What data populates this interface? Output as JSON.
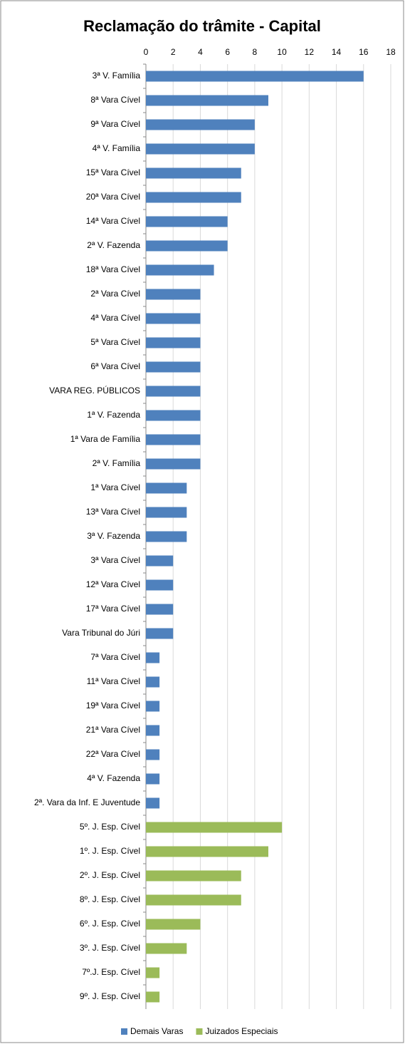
{
  "chart_data": {
    "type": "bar",
    "orientation": "horizontal",
    "title": "Reclamação do trâmite - Capital",
    "categories": [
      "3ª V. Família",
      "8ª Vara Cível",
      "9ª Vara Cível",
      "4ª V. Família",
      "15ª Vara Cível",
      "20ª Vara Cível",
      "14ª Vara Cível",
      "2ª V. Fazenda",
      "18ª Vara Cível",
      "2ª Vara Cível",
      "4ª Vara Cível",
      "5ª Vara Cível",
      "6ª Vara Cível",
      "VARA REG. PÚBLICOS",
      "1ª V. Fazenda",
      "1ª Vara de Família",
      "2ª V. Família",
      "1ª Vara Cível",
      "13ª Vara Cível",
      "3ª V. Fazenda",
      "3ª Vara Cível",
      "12ª Vara Cível",
      "17ª Vara Cível",
      "Vara Tribunal do Júri",
      "7ª Vara Cível",
      "11ª Vara Cível",
      "19ª Vara Cível",
      "21ª Vara Cível",
      "22ª Vara Cível",
      "4ª V. Fazenda",
      "2ª. Vara da Inf. E Juventude",
      "5º. J. Esp. Cível",
      "1º. J. Esp. Cível",
      "2º. J. Esp. Cível",
      "8º. J. Esp. Cível",
      "6º. J. Esp. Cível",
      "3º. J. Esp. Cível",
      "7º.J. Esp. Cível",
      "9º. J. Esp. Cível"
    ],
    "series": [
      {
        "name": "Demais Varas",
        "color": "#4f81bd",
        "values": [
          16,
          9,
          8,
          8,
          7,
          7,
          6,
          6,
          5,
          4,
          4,
          4,
          4,
          4,
          4,
          4,
          4,
          3,
          3,
          3,
          2,
          2,
          2,
          2,
          1,
          1,
          1,
          1,
          1,
          1,
          1,
          null,
          null,
          null,
          null,
          null,
          null,
          null,
          null
        ]
      },
      {
        "name": "Juizados Especiais",
        "color": "#9bbb59",
        "values": [
          null,
          null,
          null,
          null,
          null,
          null,
          null,
          null,
          null,
          null,
          null,
          null,
          null,
          null,
          null,
          null,
          null,
          null,
          null,
          null,
          null,
          null,
          null,
          null,
          null,
          null,
          null,
          null,
          null,
          null,
          null,
          10,
          9,
          7,
          7,
          4,
          3,
          1,
          1
        ]
      }
    ],
    "xlim": [
      0,
      18
    ],
    "xticks": [
      0,
      2,
      4,
      6,
      8,
      10,
      12,
      14,
      16,
      18
    ],
    "grid": true,
    "legend": "bottom"
  }
}
